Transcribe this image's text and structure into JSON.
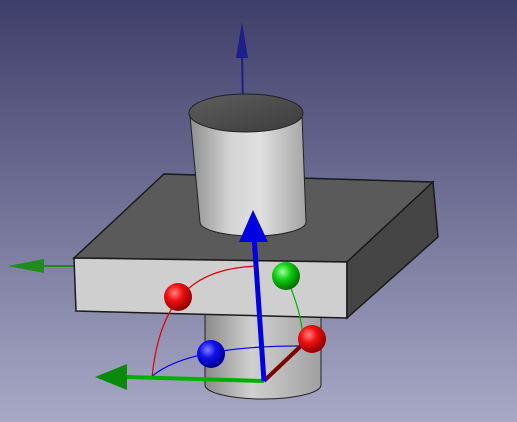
{
  "viewport": {
    "background_top": "#3e3e6a",
    "background_bottom": "#a8a8c6",
    "colors": {
      "x_axis": "#e00000",
      "y_axis": "#00b000",
      "z_axis": "#0000e0",
      "x_axis_dark": "#7a0000",
      "ref_z_axis": "#1e1e8c",
      "ref_y_axis": "#1e8c1e",
      "solid_light": "#d2d2d2",
      "solid_mid": "#b9b9b9",
      "solid_dark": "#4a4a4a",
      "solid_top": "#5a5a5a"
    },
    "objects": [
      "upper-cylinder",
      "plate-box",
      "lower-cylinder"
    ],
    "dragger": {
      "axes": [
        "x",
        "y",
        "z"
      ],
      "rotation_spheres": [
        "x-rotation-sphere",
        "y-rotation-sphere",
        "z-rotation-sphere",
        "x-rotation-sphere-back"
      ],
      "rotation_arcs": [
        "x-rotation-arc",
        "y-rotation-arc",
        "z-rotation-arc"
      ]
    },
    "reference_axes": [
      "global-z-axis",
      "global-y-axis"
    ]
  }
}
